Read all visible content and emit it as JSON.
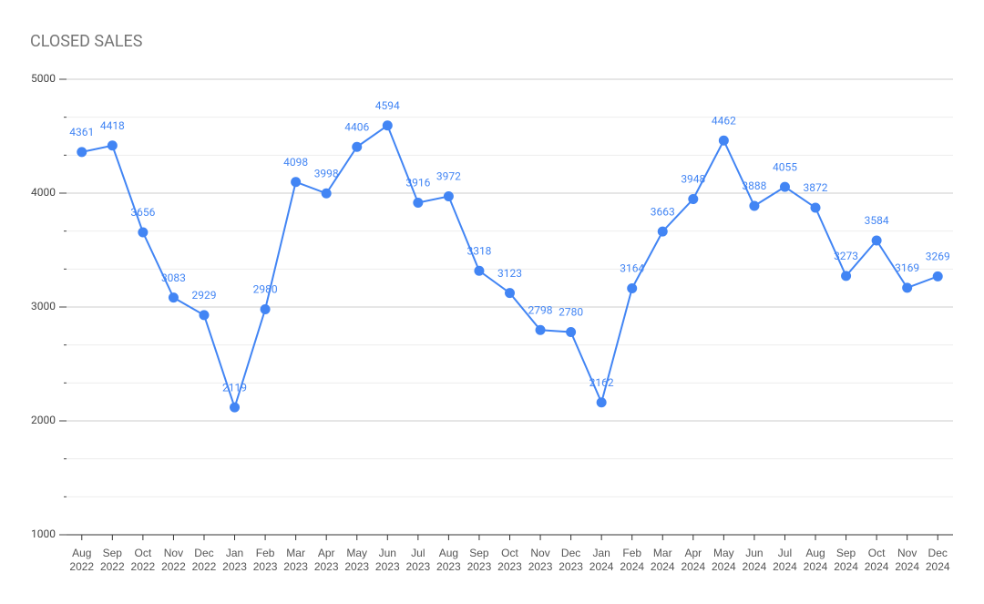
{
  "chart_data": {
    "type": "line",
    "title": "CLOSED SALES",
    "categories": [
      "Aug 2022",
      "Sep 2022",
      "Oct 2022",
      "Nov 2022",
      "Dec 2022",
      "Jan 2023",
      "Feb 2023",
      "Mar 2023",
      "Apr 2023",
      "May 2023",
      "Jun 2023",
      "Jul 2023",
      "Aug 2023",
      "Sep 2023",
      "Oct 2023",
      "Nov 2023",
      "Dec 2023",
      "Jan 2024",
      "Feb 2024",
      "Mar 2024",
      "Apr 2024",
      "May 2024",
      "Jun 2024",
      "Jul 2024",
      "Aug 2024",
      "Sep 2024",
      "Oct 2024",
      "Nov 2024",
      "Dec 2024"
    ],
    "values": [
      4361,
      4418,
      3656,
      3083,
      2929,
      2119,
      2980,
      4098,
      3998,
      4406,
      4594,
      3916,
      3972,
      3318,
      3123,
      2798,
      2780,
      2162,
      3164,
      3663,
      3948,
      4462,
      3888,
      4055,
      3872,
      3273,
      3584,
      3169,
      3269
    ],
    "color": "#4285f4",
    "ylim": [
      1000,
      5000
    ],
    "yticks": [
      1000,
      2000,
      3000,
      4000,
      5000
    ],
    "grid": true
  }
}
